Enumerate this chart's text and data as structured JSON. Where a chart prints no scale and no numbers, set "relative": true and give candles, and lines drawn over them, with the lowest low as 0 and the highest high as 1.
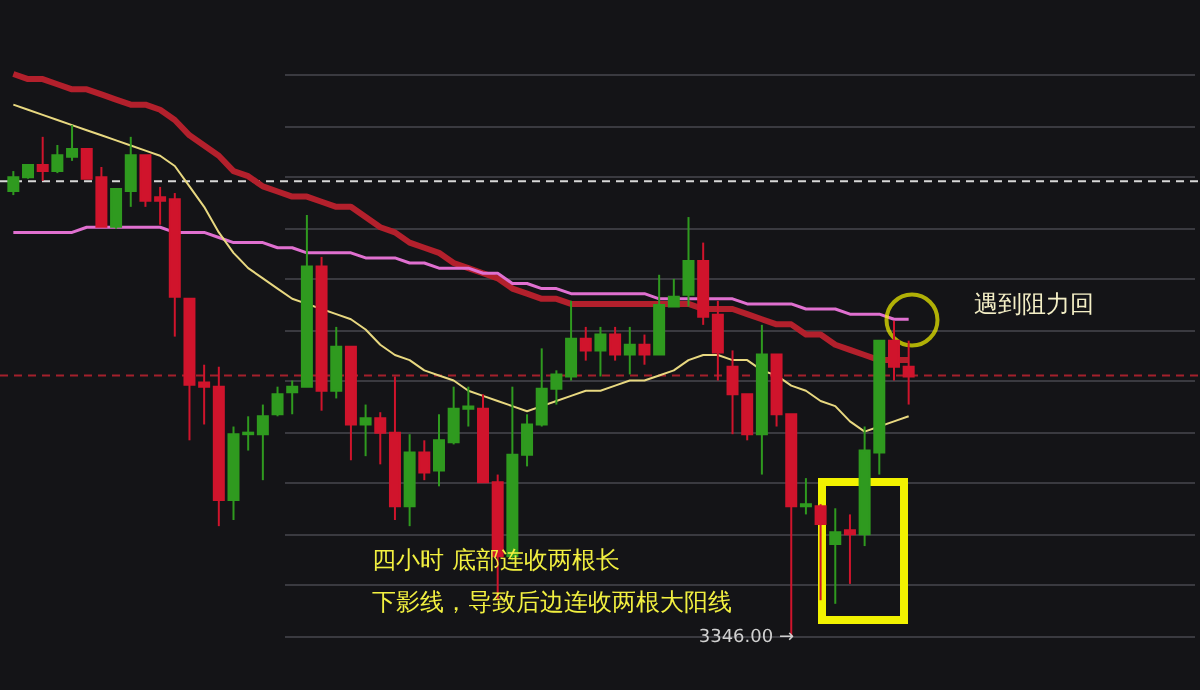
{
  "chart_data": {
    "type": "candlestick",
    "relative": true,
    "categories": [
      null,
      null,
      null,
      null,
      null,
      null,
      null,
      null,
      null,
      null,
      null,
      null,
      null,
      null,
      null,
      null,
      null,
      null,
      null,
      null,
      null,
      null,
      null,
      null,
      null,
      null,
      null,
      null,
      null,
      null,
      null,
      null,
      null,
      null,
      null,
      null,
      null,
      null,
      null,
      null,
      null,
      null,
      null,
      null,
      null,
      null,
      null,
      null,
      null,
      null,
      null,
      null,
      null,
      null,
      null,
      null,
      null,
      null,
      null,
      null,
      null,
      null
    ],
    "ohlc": [
      [
        0.871,
        0.91,
        0.863,
        0.898
      ],
      [
        0.898,
        0.922,
        0.895,
        0.922
      ],
      [
        0.922,
        0.977,
        0.891,
        0.91
      ],
      [
        0.91,
        0.961,
        0.906,
        0.941
      ],
      [
        0.938,
        1.0,
        0.93,
        0.953
      ],
      [
        0.953,
        0.953,
        0.895,
        0.895
      ],
      [
        0.898,
        0.918,
        0.801,
        0.801
      ],
      [
        0.801,
        0.875,
        0.797,
        0.875
      ],
      [
        0.871,
        0.977,
        0.84,
        0.941
      ],
      [
        0.941,
        0.941,
        0.84,
        0.852
      ],
      [
        0.859,
        0.879,
        0.805,
        0.852
      ],
      [
        0.855,
        0.867,
        0.586,
        0.664
      ],
      [
        0.66,
        0.66,
        0.383,
        0.492
      ],
      [
        0.496,
        0.531,
        0.414,
        0.488
      ],
      [
        0.488,
        0.527,
        0.215,
        0.266
      ],
      [
        0.266,
        0.41,
        0.227,
        0.395
      ],
      [
        0.395,
        0.43,
        0.363,
        0.398
      ],
      [
        0.395,
        0.453,
        0.305,
        0.43
      ],
      [
        0.434,
        0.488,
        0.43,
        0.473
      ],
      [
        0.477,
        0.5,
        0.434,
        0.488
      ],
      [
        0.488,
        0.824,
        0.488,
        0.723
      ],
      [
        0.723,
        0.742,
        0.441,
        0.48
      ],
      [
        0.48,
        0.605,
        0.465,
        0.566
      ],
      [
        0.566,
        0.566,
        0.344,
        0.414
      ],
      [
        0.414,
        0.453,
        0.352,
        0.426
      ],
      [
        0.426,
        0.438,
        0.336,
        0.398
      ],
      [
        0.398,
        0.508,
        0.227,
        0.254
      ],
      [
        0.254,
        0.395,
        0.215,
        0.359
      ],
      [
        0.359,
        0.383,
        0.305,
        0.32
      ],
      [
        0.324,
        0.434,
        0.293,
        0.383
      ],
      [
        0.379,
        0.488,
        0.375,
        0.445
      ],
      [
        0.445,
        0.488,
        0.41,
        0.449
      ],
      [
        0.445,
        0.473,
        0.301,
        0.301
      ],
      [
        0.301,
        0.316,
        0.07,
        0.156
      ],
      [
        0.156,
        0.488,
        0.148,
        0.355
      ],
      [
        0.355,
        0.434,
        0.332,
        0.414
      ],
      [
        0.414,
        0.563,
        0.41,
        0.484
      ],
      [
        0.484,
        0.52,
        0.453,
        0.512
      ],
      [
        0.508,
        0.656,
        0.5,
        0.582
      ],
      [
        0.582,
        0.605,
        0.539,
        0.559
      ],
      [
        0.559,
        0.605,
        0.508,
        0.59
      ],
      [
        0.59,
        0.605,
        0.539,
        0.551
      ],
      [
        0.551,
        0.605,
        0.512,
        0.57
      ],
      [
        0.57,
        0.59,
        0.531,
        0.551
      ],
      [
        0.551,
        0.707,
        0.551,
        0.648
      ],
      [
        0.645,
        0.699,
        0.645,
        0.664
      ],
      [
        0.668,
        0.82,
        0.645,
        0.734
      ],
      [
        0.734,
        0.77,
        0.609,
        0.625
      ],
      [
        0.629,
        0.656,
        0.5,
        0.555
      ],
      [
        0.527,
        0.559,
        0.395,
        0.473
      ],
      [
        0.473,
        0.473,
        0.383,
        0.395
      ],
      [
        0.395,
        0.609,
        0.316,
        0.551
      ],
      [
        0.551,
        0.551,
        0.41,
        0.434
      ],
      [
        0.434,
        0.434,
        0.0,
        0.254
      ],
      [
        0.254,
        0.309,
        0.238,
        0.258
      ],
      [
        0.254,
        0.258,
        0.07,
        0.219
      ],
      [
        0.18,
        0.25,
        0.063,
        0.203
      ],
      [
        0.207,
        0.238,
        0.102,
        0.199
      ],
      [
        0.199,
        0.41,
        0.176,
        0.363
      ],
      [
        0.359,
        0.578,
        0.316,
        0.578
      ],
      [
        0.578,
        0.617,
        0.5,
        0.527
      ],
      [
        0.527,
        0.578,
        0.453,
        0.508
      ]
    ],
    "colors": [
      "#2f9a1f",
      "#2f9a1f",
      "#d0142c",
      "#2f9a1f",
      "#2f9a1f",
      "#d0142c",
      "#d0142c",
      "#2f9a1f",
      "#2f9a1f",
      "#d0142c",
      "#d0142c",
      "#d0142c",
      "#d0142c",
      "#d0142c",
      "#d0142c",
      "#2f9a1f",
      "#2f9a1f",
      "#2f9a1f",
      "#2f9a1f",
      "#2f9a1f",
      "#2f9a1f",
      "#d0142c",
      "#2f9a1f",
      "#d0142c",
      "#2f9a1f",
      "#d0142c",
      "#d0142c",
      "#2f9a1f",
      "#d0142c",
      "#2f9a1f",
      "#2f9a1f",
      "#2f9a1f",
      "#d0142c",
      "#d0142c",
      "#2f9a1f",
      "#2f9a1f",
      "#2f9a1f",
      "#2f9a1f",
      "#2f9a1f",
      "#d0142c",
      "#2f9a1f",
      "#d0142c",
      "#2f9a1f",
      "#d0142c",
      "#2f9a1f",
      "#2f9a1f",
      "#2f9a1f",
      "#d0142c",
      "#d0142c",
      "#d0142c",
      "#d0142c",
      "#2f9a1f",
      "#d0142c",
      "#d0142c",
      "#2f9a1f",
      "#d0142c",
      "#2f9a1f",
      "#d0142c",
      "#2f9a1f",
      "#2f9a1f",
      "#d0142c",
      "#d0142c"
    ],
    "series": [
      {
        "type": "line",
        "color": "#b3202c",
        "values": [
          1.1,
          1.09,
          1.09,
          1.08,
          1.07,
          1.07,
          1.06,
          1.05,
          1.04,
          1.04,
          1.03,
          1.01,
          0.98,
          0.96,
          0.94,
          0.91,
          0.9,
          0.88,
          0.87,
          0.86,
          0.86,
          0.85,
          0.84,
          0.84,
          0.82,
          0.8,
          0.79,
          0.77,
          0.76,
          0.75,
          0.73,
          0.72,
          0.71,
          0.7,
          0.68,
          0.67,
          0.66,
          0.66,
          0.65,
          0.65,
          0.65,
          0.65,
          0.65,
          0.65,
          0.65,
          0.65,
          0.65,
          0.64,
          0.64,
          0.64,
          0.63,
          0.62,
          0.61,
          0.61,
          0.59,
          0.59,
          0.57,
          0.56,
          0.55,
          0.54,
          0.54,
          0.54
        ]
      },
      {
        "type": "line",
        "color": "#e070d0",
        "values": [
          0.79,
          0.79,
          0.79,
          0.79,
          0.79,
          0.8,
          0.8,
          0.8,
          0.8,
          0.8,
          0.8,
          0.79,
          0.79,
          0.79,
          0.78,
          0.77,
          0.77,
          0.77,
          0.76,
          0.76,
          0.75,
          0.75,
          0.75,
          0.75,
          0.74,
          0.74,
          0.74,
          0.73,
          0.73,
          0.72,
          0.72,
          0.72,
          0.71,
          0.71,
          0.69,
          0.69,
          0.68,
          0.68,
          0.67,
          0.67,
          0.67,
          0.67,
          0.67,
          0.67,
          0.66,
          0.66,
          0.66,
          0.66,
          0.66,
          0.66,
          0.65,
          0.65,
          0.65,
          0.65,
          0.64,
          0.64,
          0.64,
          0.63,
          0.63,
          0.63,
          0.62,
          0.62
        ]
      },
      {
        "type": "line",
        "color": "#e8d880",
        "values": [
          1.04,
          1.03,
          1.02,
          1.01,
          1.0,
          0.99,
          0.98,
          0.97,
          0.96,
          0.95,
          0.94,
          0.92,
          0.88,
          0.84,
          0.79,
          0.75,
          0.72,
          0.7,
          0.68,
          0.66,
          0.65,
          0.64,
          0.63,
          0.62,
          0.6,
          0.57,
          0.55,
          0.54,
          0.52,
          0.51,
          0.5,
          0.48,
          0.47,
          0.46,
          0.45,
          0.44,
          0.45,
          0.46,
          0.47,
          0.48,
          0.48,
          0.49,
          0.5,
          0.5,
          0.51,
          0.52,
          0.54,
          0.55,
          0.55,
          0.54,
          0.54,
          0.52,
          0.51,
          0.49,
          0.48,
          0.46,
          0.45,
          0.42,
          0.4,
          0.41,
          0.42,
          0.43
        ]
      }
    ],
    "ref_lines": [
      {
        "axis": "y",
        "value": 0.89,
        "color": "#d8d8d8",
        "line_style": "dashed"
      },
      {
        "axis": "y",
        "value": 0.51,
        "color": "#a3202c",
        "line_style": "dashed"
      }
    ],
    "annotations": [
      "四小时 底部连收两根长下影线，导致后边连收两根大阳线",
      "遇到阻力回",
      "3346.00 →"
    ],
    "grid": "y"
  }
}
